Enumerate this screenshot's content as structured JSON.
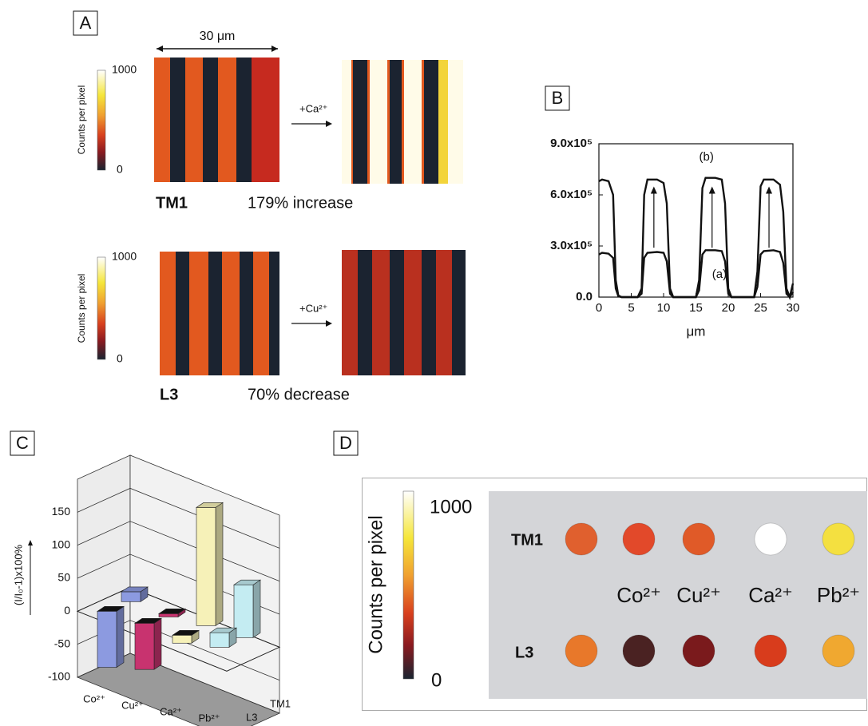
{
  "panel_a": {
    "label": "A",
    "scale_bar": "30 μm",
    "colorbar": {
      "label": "Counts per pixel",
      "max": "1000",
      "min": "0"
    },
    "rows": [
      {
        "name": "TM1",
        "ion": "+Ca²⁺",
        "change": "179% increase"
      },
      {
        "name": "L3",
        "ion": "+Cu²⁺",
        "change": "70% decrease"
      }
    ]
  },
  "chart_data": [
    {
      "type": "line",
      "panel": "B",
      "x_label": "μm",
      "xlim": [
        0,
        30
      ],
      "xticks": [
        0,
        5,
        10,
        15,
        20,
        25,
        30
      ],
      "ylim": [
        0,
        900000
      ],
      "yticks": [
        {
          "value": 0,
          "label": "0.0"
        },
        {
          "value": 300000,
          "label": "3.0x10⁵"
        },
        {
          "value": 600000,
          "label": "6.0x10⁵"
        },
        {
          "value": 900000,
          "label": "9.0x10⁵"
        }
      ],
      "x": [
        0,
        0.5,
        1.5,
        2.2,
        2.6,
        3,
        3.5,
        6,
        6.6,
        7,
        7.5,
        9,
        10,
        10.5,
        11,
        11.5,
        15,
        15.5,
        16,
        16.5,
        18,
        19,
        19.5,
        20,
        20.5,
        24,
        24.5,
        25,
        25.5,
        27,
        28,
        28.5,
        29,
        29.5,
        30
      ],
      "series": [
        {
          "name": "(a)",
          "color": "#111111",
          "values": [
            250000,
            260000,
            255000,
            230000,
            50000,
            5000,
            0,
            0,
            20000,
            230000,
            260000,
            265000,
            260000,
            210000,
            20000,
            0,
            0,
            40000,
            250000,
            275000,
            275000,
            270000,
            210000,
            20000,
            0,
            0,
            60000,
            250000,
            270000,
            275000,
            265000,
            200000,
            20000,
            0,
            30000
          ]
        },
        {
          "name": "(b)",
          "color": "#111111",
          "values": [
            680000,
            690000,
            680000,
            600000,
            100000,
            10000,
            0,
            0,
            50000,
            600000,
            690000,
            690000,
            670000,
            550000,
            50000,
            0,
            0,
            100000,
            640000,
            700000,
            700000,
            690000,
            550000,
            50000,
            0,
            0,
            150000,
            650000,
            690000,
            690000,
            660000,
            500000,
            50000,
            0,
            80000
          ]
        }
      ]
    },
    {
      "type": "bar3d",
      "panel": "C",
      "y_label": "(I/I₀-1)x100%",
      "categories": [
        "Co²⁺",
        "Cu²⁺",
        "Ca²⁺",
        "Pb²⁺"
      ],
      "colors": [
        "#8c9ae0",
        "#c8336f",
        "#f6f1b8",
        "#c4ecf2"
      ],
      "ylim": [
        -100,
        200
      ],
      "yticks": [
        -100,
        -50,
        0,
        50,
        100,
        150
      ],
      "series": [
        {
          "name": "TM1",
          "values": [
            15,
            -5,
            179,
            80
          ]
        },
        {
          "name": "L3",
          "values": [
            -85,
            -70,
            -12,
            22
          ]
        }
      ]
    }
  ],
  "panel_d": {
    "label": "D",
    "colorbar": {
      "label": "Counts per pixel",
      "max": "1000",
      "min": "0"
    },
    "rows": [
      "TM1",
      "L3"
    ],
    "ions": [
      "Co²⁺",
      "Cu²⁺",
      "Ca²⁺",
      "Pb²⁺"
    ]
  }
}
